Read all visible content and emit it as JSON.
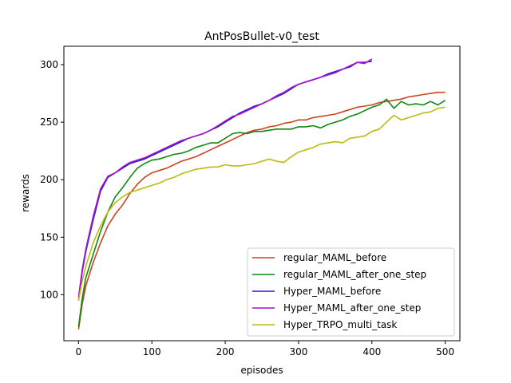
{
  "chart_data": {
    "type": "line",
    "title": "AntPosBullet-v0_test",
    "xlabel": "episodes",
    "ylabel": "rewards",
    "xlim": [
      -20,
      520
    ],
    "ylim": [
      60,
      316
    ],
    "xticks": [
      0,
      100,
      200,
      300,
      400,
      500
    ],
    "yticks": [
      100,
      150,
      200,
      250,
      300
    ],
    "grid": false,
    "legend_position": "lower-right",
    "series": [
      {
        "name": "regular_MAML_before",
        "color": "#cc4422",
        "x": [
          0,
          5,
          10,
          20,
          30,
          40,
          50,
          60,
          70,
          80,
          90,
          100,
          110,
          120,
          130,
          140,
          150,
          160,
          170,
          180,
          190,
          200,
          210,
          220,
          230,
          240,
          250,
          260,
          270,
          280,
          290,
          300,
          310,
          320,
          330,
          340,
          350,
          360,
          370,
          380,
          390,
          400,
          410,
          420,
          430,
          440,
          450,
          460,
          470,
          480,
          490,
          500
        ],
        "y": [
          70,
          92,
          108,
          128,
          145,
          160,
          170,
          178,
          188,
          196,
          202,
          206,
          208,
          210,
          213,
          216,
          218,
          220,
          223,
          226,
          229,
          232,
          235,
          238,
          241,
          243,
          244,
          246,
          247,
          249,
          250,
          252,
          252,
          254,
          255,
          256,
          257,
          259,
          261,
          263,
          264,
          265,
          267,
          268,
          269,
          270,
          272,
          273,
          274,
          275,
          276,
          276
        ]
      },
      {
        "name": "regular_MAML_after_one_step",
        "color": "#118811",
        "x": [
          0,
          5,
          10,
          20,
          30,
          40,
          50,
          60,
          70,
          80,
          90,
          100,
          110,
          120,
          130,
          140,
          150,
          160,
          170,
          180,
          190,
          200,
          210,
          220,
          230,
          240,
          250,
          260,
          270,
          280,
          290,
          300,
          310,
          320,
          330,
          340,
          350,
          360,
          370,
          380,
          390,
          400,
          410,
          420,
          430,
          440,
          450,
          460,
          470,
          480,
          490,
          500
        ],
        "y": [
          72,
          97,
          115,
          135,
          155,
          172,
          185,
          193,
          202,
          210,
          214,
          217,
          218,
          220,
          222,
          223,
          225,
          228,
          230,
          232,
          232,
          236,
          240,
          241,
          240,
          242,
          242,
          243,
          244,
          244,
          244,
          246,
          246,
          247,
          245,
          248,
          250,
          252,
          255,
          257,
          260,
          263,
          265,
          270,
          262,
          268,
          265,
          266,
          265,
          268,
          265,
          269
        ]
      },
      {
        "name": "Hyper_MAML_before",
        "color": "#2222cc",
        "x": [
          0,
          5,
          10,
          20,
          30,
          40,
          50,
          60,
          70,
          80,
          90,
          100,
          110,
          120,
          130,
          140,
          150,
          160,
          170,
          180,
          190,
          200,
          210,
          220,
          230,
          240,
          250,
          260,
          270,
          280,
          290,
          300,
          310,
          320,
          330,
          340,
          350,
          360,
          370,
          380,
          390,
          400
        ],
        "y": [
          95,
          120,
          138,
          165,
          190,
          202,
          206,
          210,
          214,
          216,
          218,
          221,
          224,
          227,
          230,
          233,
          236,
          238,
          240,
          243,
          246,
          250,
          254,
          258,
          261,
          264,
          266,
          269,
          272,
          275,
          279,
          283,
          285,
          287,
          289,
          292,
          294,
          296,
          298,
          302,
          302,
          303
        ]
      },
      {
        "name": "Hyper_MAML_after_one_step",
        "color": "#aa11cc",
        "x": [
          0,
          5,
          10,
          20,
          30,
          40,
          50,
          60,
          70,
          80,
          90,
          100,
          110,
          120,
          130,
          140,
          150,
          160,
          170,
          180,
          190,
          200,
          210,
          220,
          230,
          240,
          250,
          260,
          270,
          280,
          290,
          300,
          310,
          320,
          330,
          340,
          350,
          360,
          370,
          380,
          390,
          400
        ],
        "y": [
          98,
          122,
          140,
          168,
          192,
          203,
          206,
          211,
          215,
          217,
          219,
          222,
          225,
          228,
          231,
          234,
          236,
          238,
          240,
          243,
          247,
          251,
          255,
          257,
          260,
          263,
          266,
          269,
          273,
          276,
          280,
          283,
          285,
          287,
          289,
          291,
          293,
          296,
          299,
          302,
          301,
          305
        ]
      },
      {
        "name": "Hyper_TRPO_multi_task",
        "color": "#bbbb11",
        "x": [
          0,
          5,
          10,
          20,
          30,
          40,
          50,
          60,
          70,
          80,
          90,
          100,
          110,
          120,
          130,
          140,
          150,
          160,
          170,
          180,
          190,
          200,
          210,
          220,
          230,
          240,
          250,
          260,
          270,
          280,
          290,
          300,
          310,
          320,
          330,
          340,
          350,
          360,
          370,
          380,
          390,
          400,
          410,
          420,
          430,
          440,
          450,
          460,
          470,
          480,
          490,
          500
        ],
        "y": [
          95,
          112,
          125,
          145,
          160,
          172,
          180,
          185,
          189,
          191,
          193,
          195,
          197,
          200,
          202,
          205,
          207,
          209,
          210,
          211,
          211,
          213,
          212,
          212,
          213,
          214,
          216,
          218,
          216,
          215,
          220,
          224,
          226,
          228,
          231,
          232,
          233,
          232,
          236,
          237,
          238,
          242,
          244,
          250,
          256,
          252,
          254,
          256,
          258,
          259,
          262,
          263
        ]
      }
    ]
  }
}
